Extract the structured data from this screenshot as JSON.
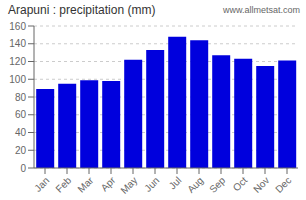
{
  "chart_data": {
    "type": "bar",
    "title": "Arapuni : precipitation (mm)",
    "annotations": [
      "www.allmetsat.com"
    ],
    "categories": [
      "Jan",
      "Feb",
      "Mar",
      "Apr",
      "May",
      "Jun",
      "Jul",
      "Aug",
      "Sep",
      "Oct",
      "Nov",
      "Dec"
    ],
    "values": [
      89,
      95,
      99,
      98,
      122,
      133,
      148,
      144,
      127,
      123,
      115,
      121
    ],
    "color": "#0000dd",
    "ylim": [
      0,
      160
    ],
    "yticks": [
      0,
      20,
      40,
      60,
      80,
      100,
      120,
      140,
      160
    ],
    "grid": true
  }
}
